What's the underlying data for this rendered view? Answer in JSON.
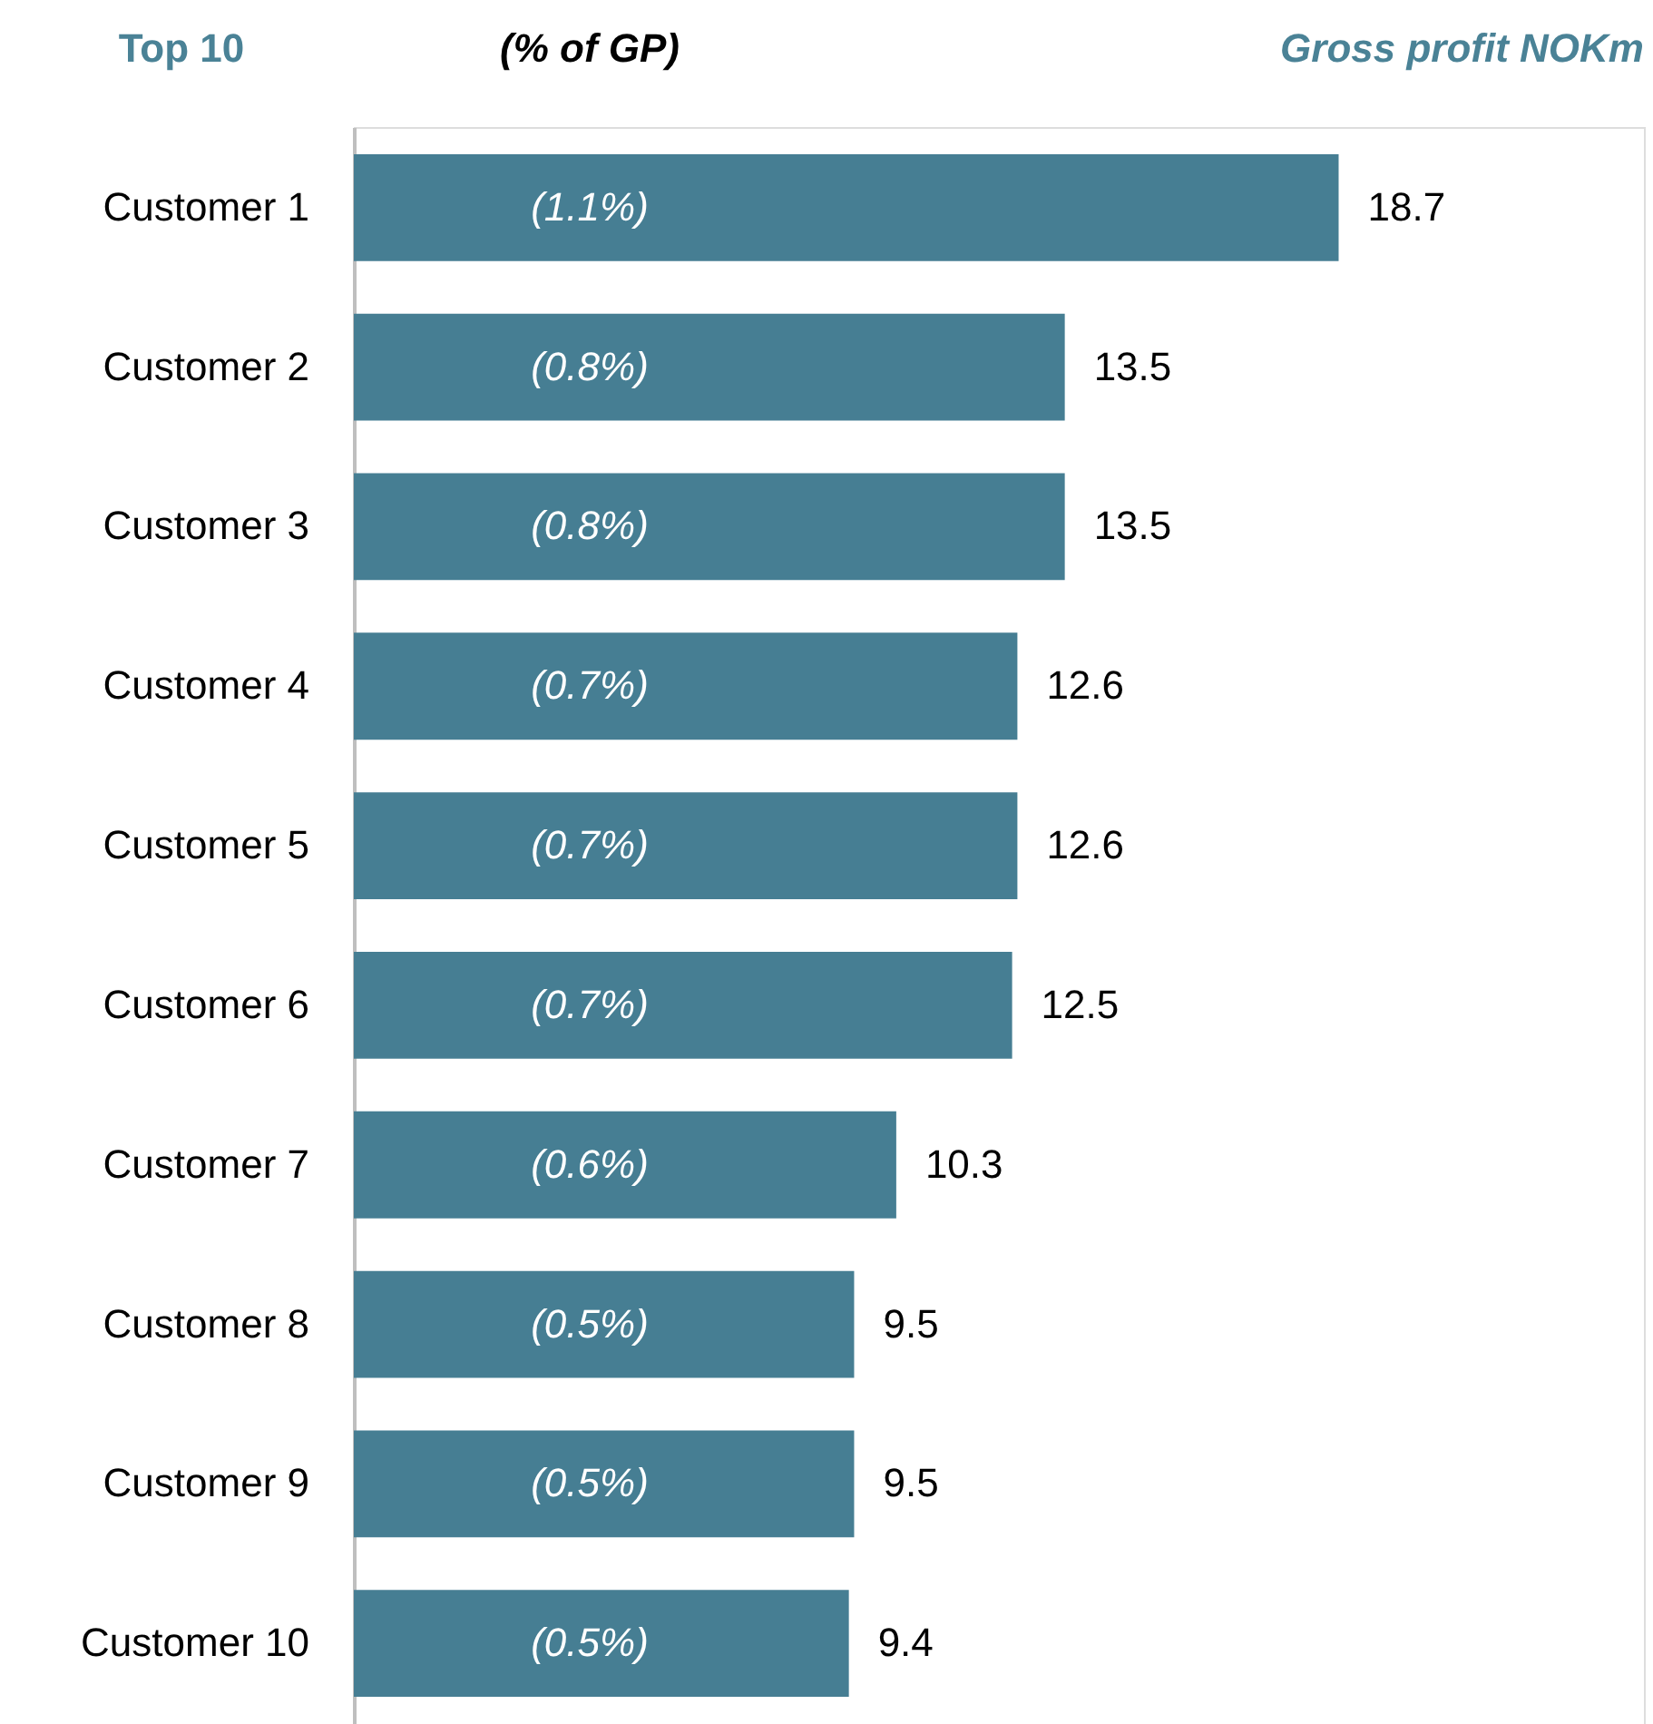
{
  "chart_data": {
    "type": "bar",
    "orientation": "horizontal",
    "title": "Top 10",
    "xlabel": "Gross profit NOKm",
    "categories": [
      "Customer 1",
      "Customer 2",
      "Customer 3",
      "Customer 4",
      "Customer 5",
      "Customer 6",
      "Customer 7",
      "Customer 8",
      "Customer 9",
      "Customer 10"
    ],
    "values": [
      18.7,
      13.5,
      13.5,
      12.6,
      12.6,
      12.5,
      10.3,
      9.5,
      9.5,
      9.4
    ],
    "color": "#467e93",
    "data_labels": true,
    "grid": false,
    "tick_labels": "y",
    "annotations": [
      "(% of GP)",
      "(1.1%)",
      "(0.8%)",
      "(0.8%)",
      "(0.7%)",
      "(0.7%)",
      "(0.7%)",
      "(0.6%)",
      "(0.5%)",
      "(0.5%)",
      "(0.5%)"
    ]
  }
}
